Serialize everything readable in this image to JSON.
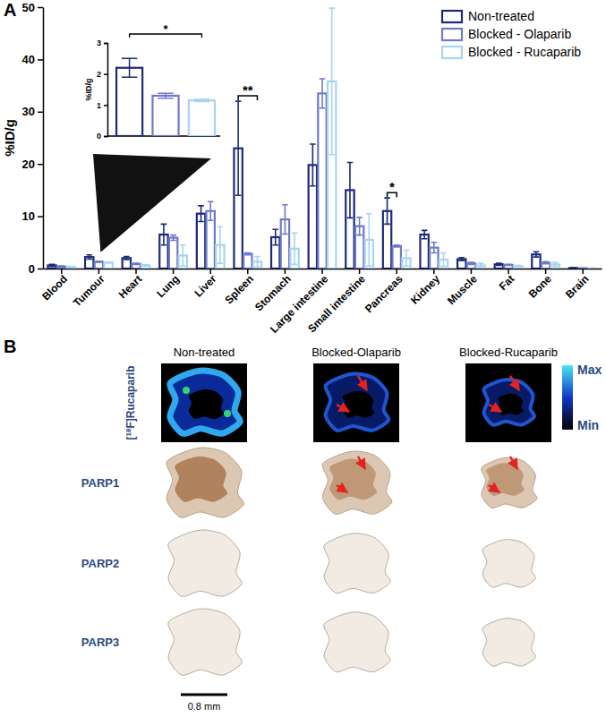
{
  "chart_data": [
    {
      "type": "bar",
      "y_label": "%ID/g",
      "categories": [
        "Blood",
        "Tumour",
        "Heart",
        "Lung",
        "Liver",
        "Spleen",
        "Stomach",
        "Large intestine",
        "Small intestine",
        "Pancreas",
        "Kidney",
        "Muscle",
        "Fat",
        "Bone",
        "Brain"
      ],
      "series": [
        {
          "name": "Non-treated",
          "color": "#1c2a78",
          "values": [
            0.6,
            2.2,
            2.0,
            6.5,
            10.5,
            23.0,
            6.0,
            19.8,
            15.0,
            11.0,
            6.5,
            1.8,
            0.8,
            2.7,
            0.1
          ],
          "errors": [
            0.2,
            0.4,
            0.3,
            2.0,
            1.5,
            9.0,
            1.5,
            4.0,
            5.3,
            2.5,
            0.8,
            0.3,
            0.2,
            0.5,
            0.05
          ]
        },
        {
          "name": "Blocked - Olaparib",
          "color": "#6f79c9",
          "values": [
            0.4,
            1.3,
            0.9,
            5.9,
            11.0,
            2.8,
            9.4,
            33.5,
            8.1,
            4.3,
            4.0,
            1.0,
            0.7,
            1.1,
            0.05
          ],
          "errors": [
            0.1,
            0.1,
            0.1,
            0.5,
            1.8,
            0.2,
            2.8,
            2.8,
            1.7,
            0.2,
            1.0,
            0.2,
            0.1,
            0.2,
            0.02
          ]
        },
        {
          "name": "Blocked - Rucaparib",
          "color": "#a9d4ef",
          "values": [
            0.3,
            1.15,
            0.6,
            2.5,
            4.5,
            1.3,
            3.8,
            35.8,
            5.5,
            2.0,
            1.7,
            0.6,
            0.5,
            0.8,
            0.05
          ],
          "errors": [
            0.1,
            0.05,
            0.1,
            2.0,
            3.5,
            1.0,
            3.0,
            14.0,
            5.0,
            1.5,
            1.3,
            0.4,
            0.1,
            0.4,
            0.02
          ]
        }
      ],
      "ylim": [
        0,
        50
      ],
      "yticks": [
        0,
        10,
        20,
        30,
        40,
        50
      ],
      "legend": "top-right",
      "annotations": [
        {
          "text": "**",
          "category": "Spleen",
          "between": [
            0,
            2
          ]
        },
        {
          "text": "*",
          "category": "Pancreas",
          "between": [
            0,
            1
          ]
        }
      ]
    },
    {
      "type": "bar",
      "y_label": "%ID/g",
      "categories": [
        null,
        null,
        null
      ],
      "values": [
        2.2,
        1.3,
        1.15
      ],
      "errors": [
        0.3,
        0.08,
        0.04
      ],
      "colors": [
        "#1c2a78",
        "#6f79c9",
        "#a9d4ef"
      ],
      "ylim": [
        0,
        3
      ],
      "yticks": [
        0,
        1,
        2,
        3
      ],
      "tick_labels": "y",
      "annotations": [
        {
          "text": "*",
          "between": [
            0,
            2
          ]
        }
      ]
    }
  ],
  "panel_labels": [
    "A",
    "B"
  ],
  "panel_b": {
    "columns": [
      "Non-treated",
      "Blocked-Olaparib",
      "Blocked-Rucaparib"
    ],
    "rows": [
      "[18F]Rucaparib",
      "PARP1",
      "PARP2",
      "PARP3"
    ],
    "color_bar": [
      "Max",
      "Min"
    ],
    "scale_bar": "0.8 mm"
  }
}
